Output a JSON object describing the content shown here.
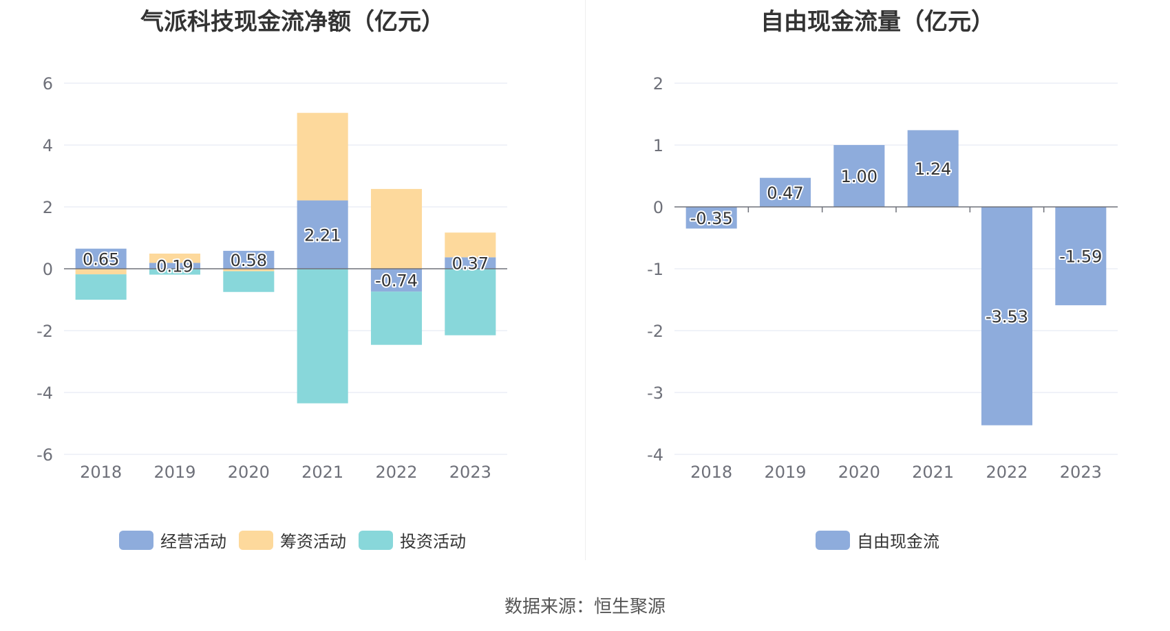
{
  "footer": {
    "source": "数据来源：恒生聚源"
  },
  "chart_data": [
    {
      "type": "bar",
      "stacked": true,
      "title": "气派科技现金流净额（亿元）",
      "categories": [
        "2018",
        "2019",
        "2020",
        "2021",
        "2022",
        "2023"
      ],
      "yticks": [
        "6",
        "4",
        "2",
        "0",
        "-2",
        "-4",
        "-6"
      ],
      "ylim": [
        -6,
        6
      ],
      "series": [
        {
          "name": "经营活动",
          "color": "#8eacdc",
          "values": [
            0.65,
            0.19,
            0.58,
            2.21,
            -0.74,
            0.37
          ],
          "labels": [
            "0.65",
            "0.19",
            "0.58",
            "2.21",
            "-0.74",
            "0.37"
          ]
        },
        {
          "name": "筹资活动",
          "color": "#fdd99c",
          "values": [
            -0.18,
            0.3,
            -0.08,
            2.83,
            2.58,
            0.8
          ]
        },
        {
          "name": "投资活动",
          "color": "#88d7da",
          "values": [
            -0.82,
            -0.19,
            -0.67,
            -4.35,
            -1.72,
            -2.15
          ]
        }
      ],
      "grid": true,
      "legend_position": "bottom"
    },
    {
      "type": "bar",
      "title": "自由现金流量（亿元）",
      "categories": [
        "2018",
        "2019",
        "2020",
        "2021",
        "2022",
        "2023"
      ],
      "yticks": [
        "2",
        "1",
        "0",
        "-1",
        "-2",
        "-3",
        "-4"
      ],
      "ylim": [
        -4,
        2
      ],
      "series": [
        {
          "name": "自由现金流",
          "color": "#8eacdc",
          "values": [
            -0.35,
            0.47,
            1.0,
            1.24,
            -3.53,
            -1.59
          ],
          "labels": [
            "-0.35",
            "0.47",
            "1.00",
            "1.24",
            "-3.53",
            "-1.59"
          ]
        }
      ],
      "grid": true,
      "legend_position": "bottom"
    }
  ]
}
